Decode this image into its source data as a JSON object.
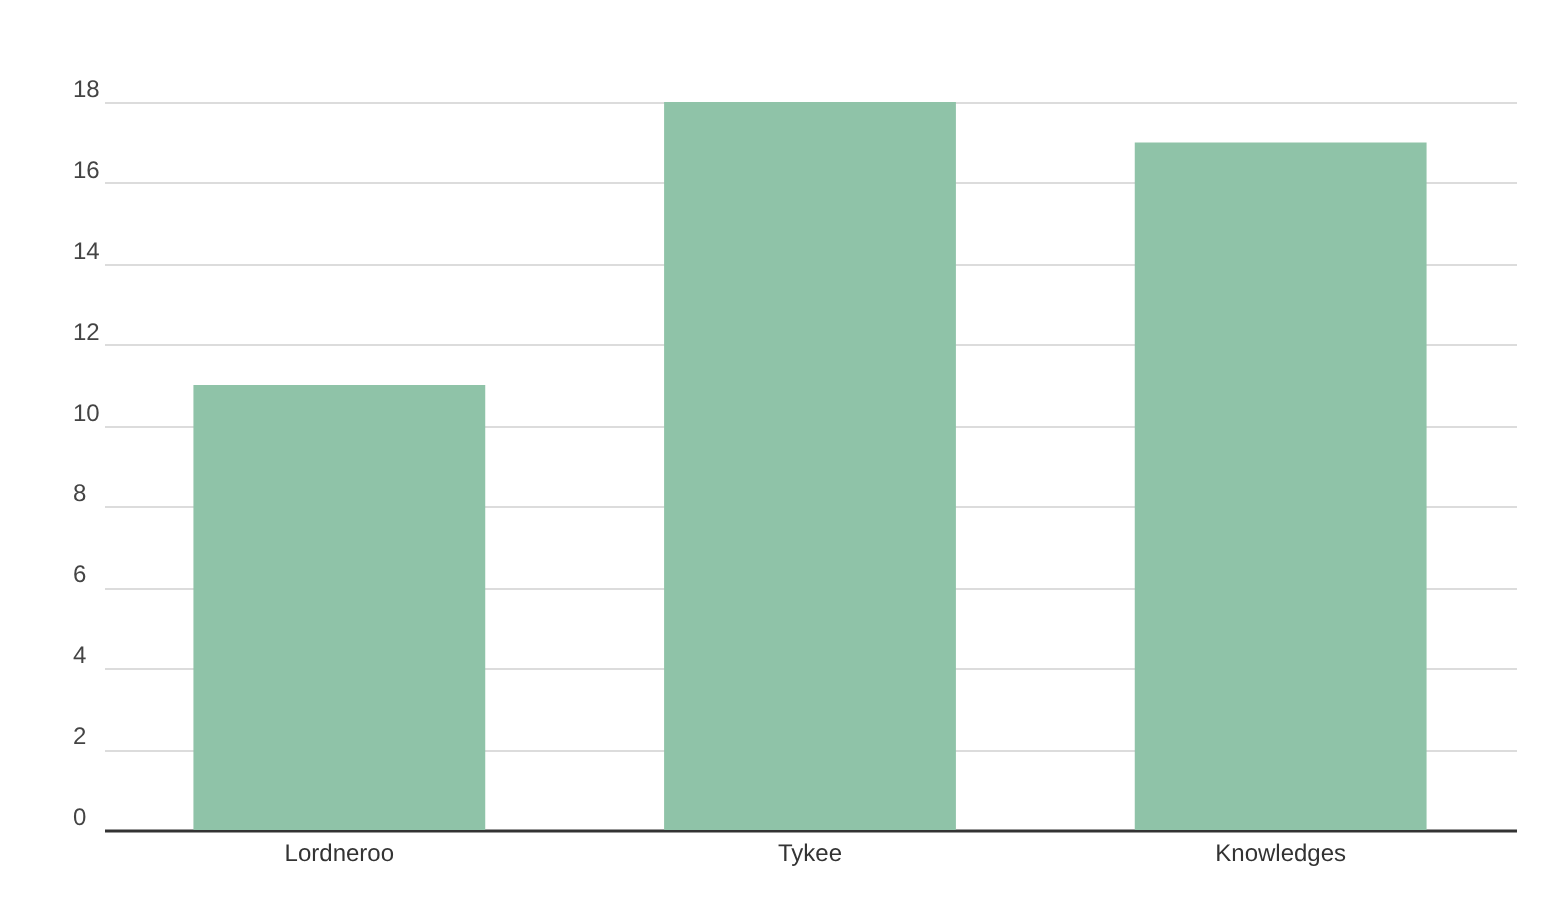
{
  "chart_data": {
    "type": "bar",
    "categories": [
      "Lordneroo",
      "Tykee",
      "Knowledges"
    ],
    "values": [
      11,
      18,
      17
    ],
    "color": "#8fc3a8",
    "ylim": [
      0,
      18
    ],
    "yticks": [
      0,
      2,
      4,
      6,
      8,
      10,
      12,
      14,
      16,
      18
    ],
    "grid": "y"
  }
}
